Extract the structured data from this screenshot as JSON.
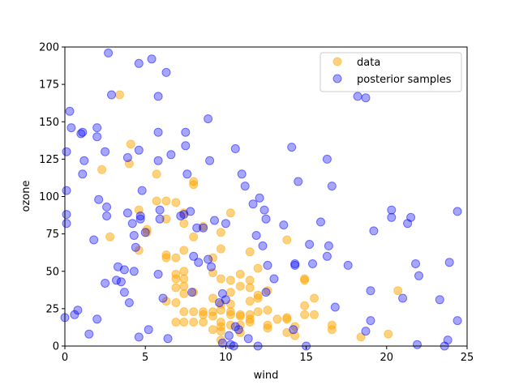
{
  "chart_data": {
    "type": "scatter",
    "xlabel": "wind",
    "ylabel": "ozone",
    "xlim": [
      0,
      25
    ],
    "ylim": [
      0,
      200
    ],
    "xticks": [
      0,
      5,
      10,
      15,
      20,
      25
    ],
    "yticks": [
      0,
      25,
      50,
      75,
      100,
      125,
      150,
      175,
      200
    ],
    "grid": false,
    "legend_position": "top-right",
    "series": [
      {
        "name": "data",
        "color": "#FFA500",
        "points": [
          [
            2.3,
            118
          ],
          [
            2.8,
            73
          ],
          [
            3.4,
            168
          ],
          [
            4.0,
            122
          ],
          [
            4.1,
            135
          ],
          [
            4.6,
            91
          ],
          [
            4.6,
            64
          ],
          [
            5.1,
            78
          ],
          [
            5.1,
            76
          ],
          [
            5.7,
            97
          ],
          [
            5.7,
            115
          ],
          [
            6.3,
            97
          ],
          [
            6.3,
            85
          ],
          [
            6.3,
            61
          ],
          [
            6.3,
            59
          ],
          [
            6.3,
            30
          ],
          [
            6.9,
            96
          ],
          [
            6.9,
            59
          ],
          [
            6.9,
            48
          ],
          [
            6.9,
            45
          ],
          [
            6.9,
            39
          ],
          [
            6.9,
            29
          ],
          [
            6.9,
            16
          ],
          [
            7.4,
            89
          ],
          [
            7.4,
            82
          ],
          [
            7.4,
            64
          ],
          [
            7.4,
            50
          ],
          [
            7.4,
            45
          ],
          [
            7.4,
            40
          ],
          [
            7.4,
            35
          ],
          [
            7.4,
            23
          ],
          [
            7.4,
            16
          ],
          [
            8.0,
            110
          ],
          [
            8.0,
            108
          ],
          [
            8.0,
            73
          ],
          [
            8.0,
            36
          ],
          [
            8.0,
            23
          ],
          [
            8.0,
            16
          ],
          [
            8.6,
            80
          ],
          [
            8.6,
            23
          ],
          [
            8.6,
            21
          ],
          [
            8.6,
            16
          ],
          [
            9.2,
            59
          ],
          [
            9.2,
            49
          ],
          [
            9.2,
            32
          ],
          [
            9.2,
            23
          ],
          [
            9.2,
            20
          ],
          [
            9.2,
            11
          ],
          [
            9.7,
            76
          ],
          [
            9.7,
            65
          ],
          [
            9.7,
            45
          ],
          [
            9.7,
            28
          ],
          [
            9.7,
            24
          ],
          [
            9.7,
            16
          ],
          [
            9.7,
            13
          ],
          [
            9.7,
            10
          ],
          [
            9.7,
            4
          ],
          [
            10.3,
            89
          ],
          [
            10.3,
            44
          ],
          [
            10.3,
            36
          ],
          [
            10.3,
            28
          ],
          [
            10.3,
            23
          ],
          [
            10.3,
            21
          ],
          [
            10.3,
            14
          ],
          [
            10.9,
            48
          ],
          [
            10.9,
            40
          ],
          [
            10.9,
            21
          ],
          [
            10.9,
            20
          ],
          [
            10.9,
            14
          ],
          [
            10.9,
            9
          ],
          [
            11.5,
            63
          ],
          [
            11.5,
            44
          ],
          [
            11.5,
            39
          ],
          [
            11.5,
            30
          ],
          [
            11.5,
            21
          ],
          [
            11.5,
            18
          ],
          [
            11.5,
            16
          ],
          [
            12.0,
            52
          ],
          [
            12.0,
            34
          ],
          [
            12.0,
            32
          ],
          [
            12.0,
            23
          ],
          [
            12.6,
            37
          ],
          [
            12.6,
            24
          ],
          [
            12.6,
            14
          ],
          [
            12.6,
            12
          ],
          [
            13.2,
            18
          ],
          [
            13.8,
            71
          ],
          [
            13.8,
            19
          ],
          [
            13.8,
            18
          ],
          [
            13.8,
            9
          ],
          [
            14.3,
            13
          ],
          [
            14.3,
            7
          ],
          [
            14.9,
            45
          ],
          [
            14.9,
            44
          ],
          [
            14.9,
            27
          ],
          [
            14.9,
            21
          ],
          [
            15.5,
            32
          ],
          [
            15.5,
            21
          ],
          [
            16.6,
            14
          ],
          [
            16.6,
            11
          ],
          [
            18.4,
            6
          ],
          [
            20.1,
            8
          ],
          [
            20.7,
            37
          ]
        ]
      },
      {
        "name": "posterior samples",
        "color": "#0000FF",
        "points": [
          [
            0.1,
            130
          ],
          [
            0.1,
            104
          ],
          [
            0.1,
            88
          ],
          [
            0.1,
            82
          ],
          [
            0.0,
            19
          ],
          [
            0.3,
            157
          ],
          [
            0.4,
            146
          ],
          [
            0.6,
            21
          ],
          [
            0.8,
            24
          ],
          [
            1.0,
            142
          ],
          [
            1.1,
            143
          ],
          [
            1.2,
            124
          ],
          [
            1.1,
            115
          ],
          [
            1.5,
            8
          ],
          [
            1.8,
            71
          ],
          [
            2.0,
            146
          ],
          [
            2.0,
            140
          ],
          [
            2.1,
            98
          ],
          [
            2.0,
            18
          ],
          [
            2.5,
            130
          ],
          [
            2.6,
            93
          ],
          [
            2.6,
            87
          ],
          [
            2.5,
            42
          ],
          [
            2.7,
            196
          ],
          [
            2.9,
            168
          ],
          [
            3.2,
            44
          ],
          [
            3.3,
            53
          ],
          [
            3.5,
            43
          ],
          [
            3.7,
            51
          ],
          [
            3.7,
            36
          ],
          [
            3.9,
            126
          ],
          [
            3.9,
            89
          ],
          [
            4.0,
            29
          ],
          [
            4.2,
            82
          ],
          [
            4.3,
            74
          ],
          [
            4.3,
            50
          ],
          [
            4.4,
            66
          ],
          [
            4.6,
            189
          ],
          [
            4.6,
            131
          ],
          [
            4.7,
            87
          ],
          [
            4.7,
            85
          ],
          [
            4.6,
            6
          ],
          [
            4.8,
            104
          ],
          [
            5.0,
            76
          ],
          [
            5.2,
            11
          ],
          [
            5.4,
            192
          ],
          [
            5.8,
            167
          ],
          [
            5.8,
            143
          ],
          [
            5.8,
            124
          ],
          [
            5.9,
            91
          ],
          [
            5.9,
            85
          ],
          [
            5.8,
            48
          ],
          [
            6.1,
            32
          ],
          [
            6.3,
            183
          ],
          [
            6.4,
            5
          ],
          [
            6.6,
            128
          ],
          [
            7.2,
            87
          ],
          [
            7.4,
            88
          ],
          [
            7.5,
            143
          ],
          [
            7.5,
            134
          ],
          [
            7.6,
            115
          ],
          [
            7.8,
            90
          ],
          [
            7.9,
            36
          ],
          [
            8.0,
            60
          ],
          [
            8.2,
            79
          ],
          [
            8.3,
            56
          ],
          [
            8.6,
            79
          ],
          [
            8.9,
            152
          ],
          [
            9.0,
            124
          ],
          [
            8.9,
            58
          ],
          [
            9.1,
            53
          ],
          [
            9.3,
            84
          ],
          [
            9.6,
            29
          ],
          [
            9.8,
            35
          ],
          [
            9.8,
            2
          ],
          [
            10.0,
            82
          ],
          [
            10.0,
            31
          ],
          [
            10.2,
            7
          ],
          [
            10.3,
            1
          ],
          [
            10.6,
            132
          ],
          [
            10.6,
            13
          ],
          [
            10.8,
            11
          ],
          [
            11.0,
            115
          ],
          [
            11.2,
            107
          ],
          [
            11.4,
            5
          ],
          [
            11.7,
            95
          ],
          [
            11.9,
            74
          ],
          [
            12.1,
            99
          ],
          [
            12.3,
            67
          ],
          [
            12.4,
            91
          ],
          [
            12.5,
            85
          ],
          [
            12.5,
            36
          ],
          [
            12.6,
            54
          ],
          [
            13.0,
            45
          ],
          [
            13.6,
            81
          ],
          [
            14.1,
            133
          ],
          [
            14.2,
            11
          ],
          [
            14.3,
            55
          ],
          [
            14.3,
            54
          ],
          [
            14.5,
            110
          ],
          [
            15.2,
            68
          ],
          [
            15.4,
            55
          ],
          [
            15.9,
            83
          ],
          [
            16.3,
            125
          ],
          [
            16.3,
            60
          ],
          [
            16.4,
            67
          ],
          [
            16.6,
            107
          ],
          [
            16.8,
            26
          ],
          [
            17.6,
            54
          ],
          [
            18.2,
            167
          ],
          [
            18.7,
            166
          ],
          [
            18.7,
            10
          ],
          [
            19.0,
            37
          ],
          [
            19.0,
            17
          ],
          [
            19.2,
            77
          ],
          [
            20.3,
            86
          ],
          [
            20.3,
            91
          ],
          [
            21.0,
            32
          ],
          [
            21.3,
            82
          ],
          [
            21.5,
            86
          ],
          [
            21.8,
            55
          ],
          [
            22.0,
            47
          ],
          [
            21.9,
            1
          ],
          [
            23.3,
            31
          ],
          [
            23.8,
            4
          ],
          [
            23.9,
            56
          ],
          [
            24.4,
            90
          ],
          [
            24.4,
            17
          ],
          [
            23.6,
            0
          ],
          [
            15.0,
            0
          ],
          [
            12.0,
            0
          ],
          [
            10.5,
            0
          ]
        ]
      }
    ]
  }
}
